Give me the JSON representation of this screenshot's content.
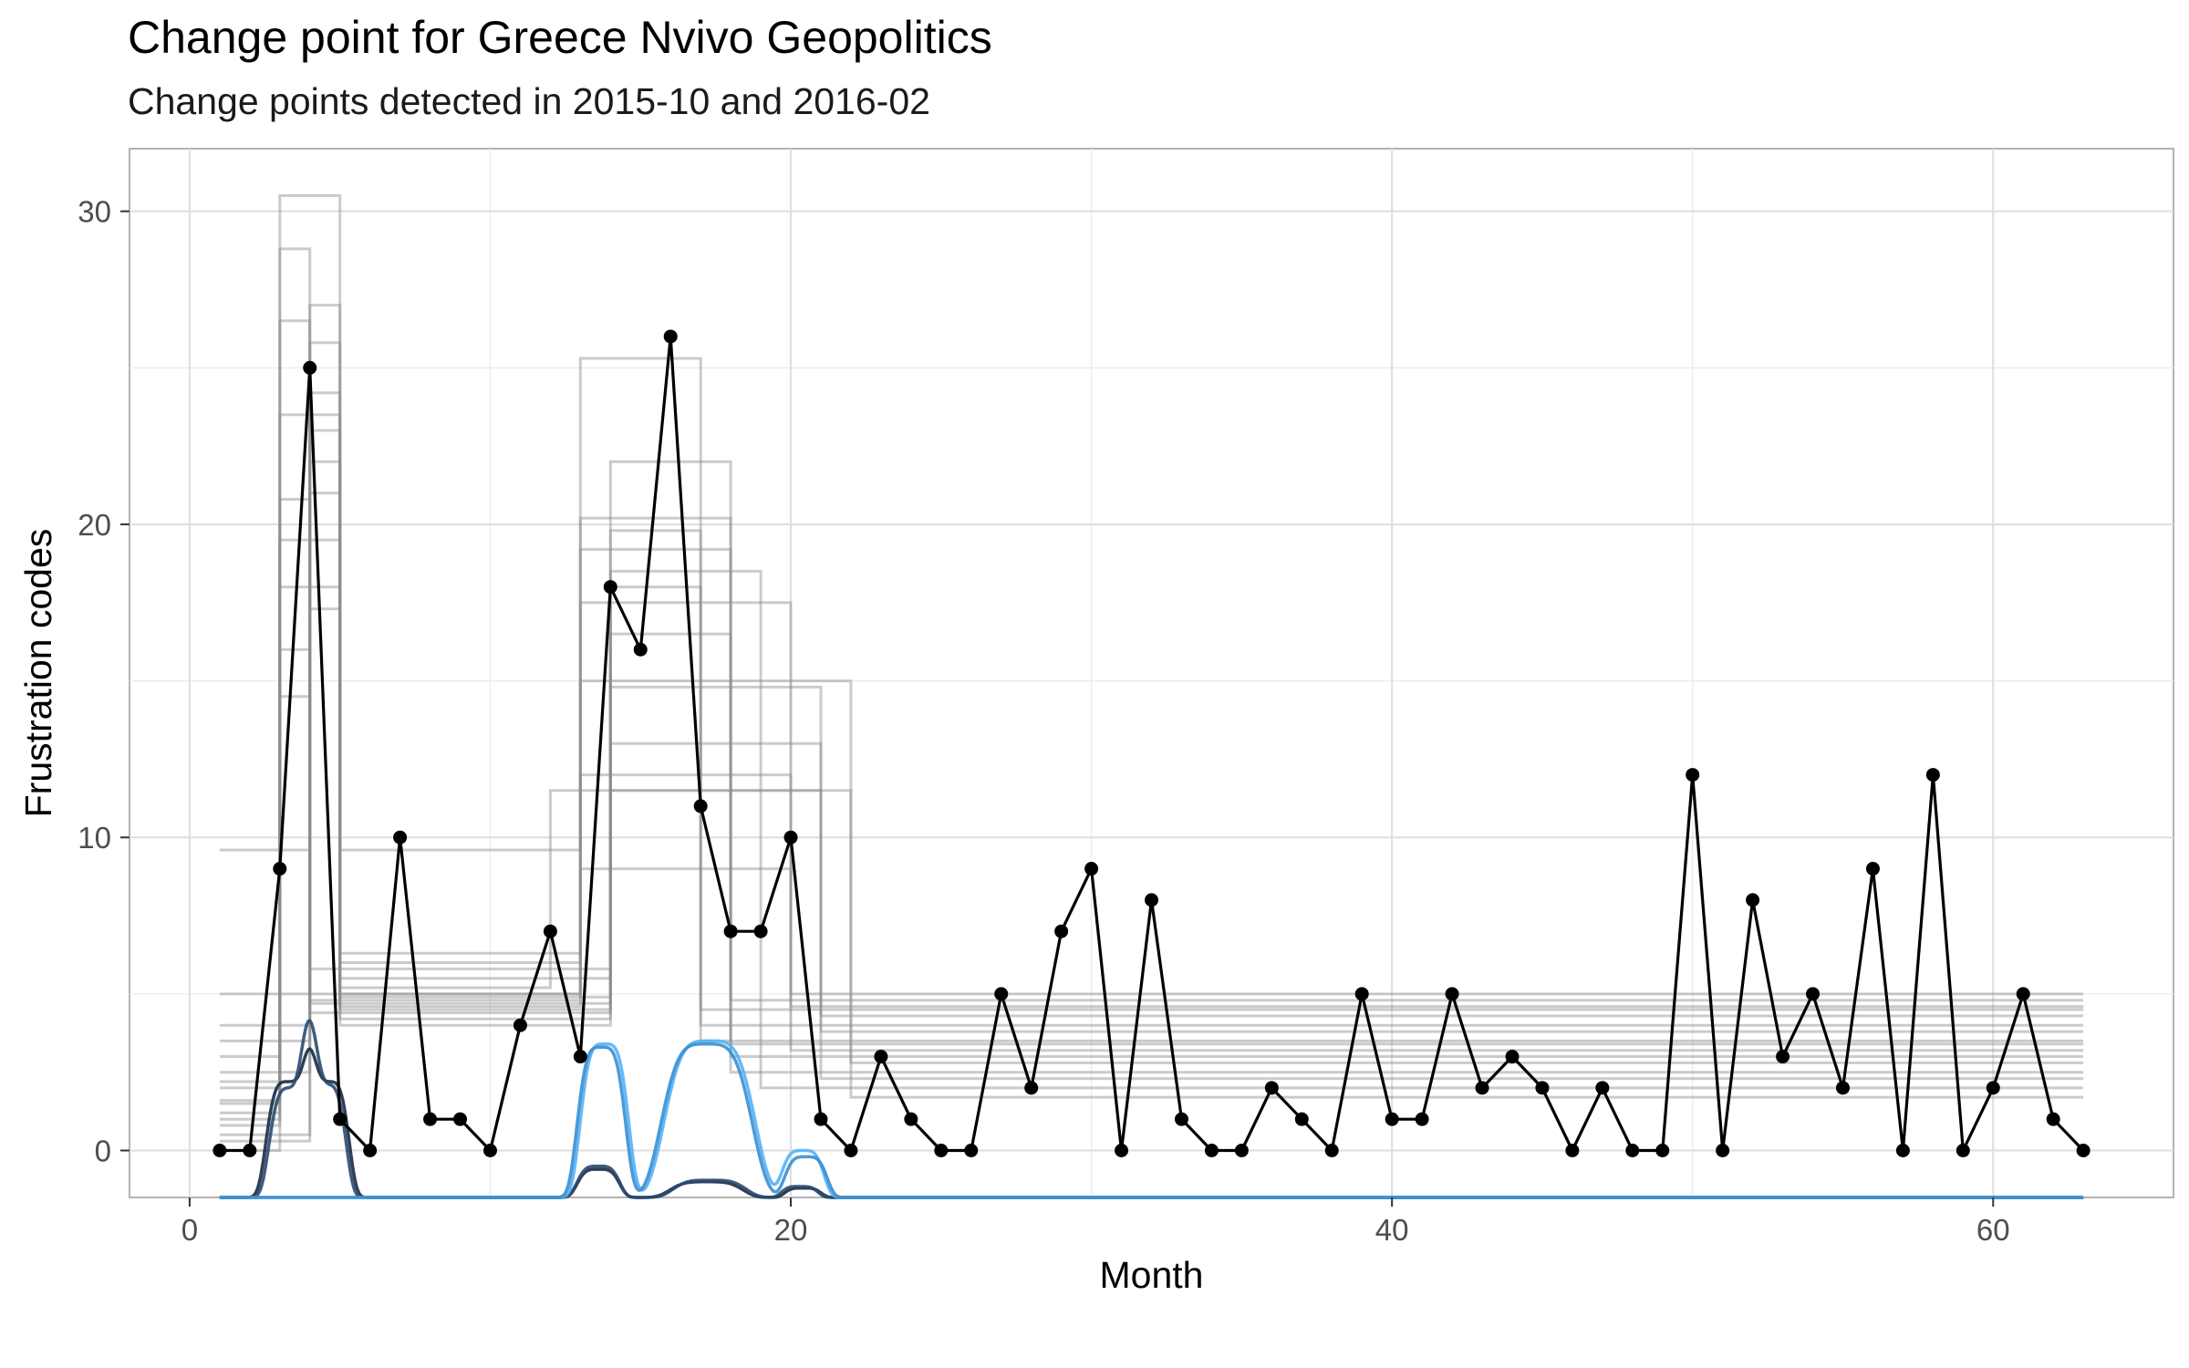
{
  "chart_data": {
    "type": "line",
    "title": "Change point for Greece Nvivo Geopolitics",
    "subtitle": "Change points detected in 2015-10 and 2016-02",
    "xlabel": "Month",
    "ylabel": "Frustration codes",
    "xlim": [
      -2,
      66
    ],
    "ylim": [
      -1.5,
      32
    ],
    "x_ticks": [
      0,
      20,
      40,
      60
    ],
    "y_ticks": [
      0,
      10,
      20,
      30
    ],
    "x_tick_labels": [
      "0",
      "20",
      "40",
      "60"
    ],
    "y_tick_labels": [
      "0",
      "10",
      "20",
      "30"
    ],
    "grid": true,
    "series": [
      {
        "role": "observed",
        "color": "#000000",
        "x": [
          1,
          2,
          3,
          4,
          5,
          6,
          7,
          8,
          9,
          10,
          11,
          12,
          13,
          14,
          15,
          16,
          17,
          18,
          19,
          20,
          21,
          22,
          23,
          24,
          25,
          26,
          27,
          28,
          29,
          30,
          31,
          32,
          33,
          34,
          35,
          36,
          37,
          38,
          39,
          40,
          41,
          42,
          43,
          44,
          45,
          46,
          47,
          48,
          49,
          50,
          51,
          52,
          53,
          54,
          55,
          56,
          57,
          58,
          59,
          60,
          61,
          62,
          63
        ],
        "y": [
          0,
          0,
          9,
          25,
          1,
          0,
          10,
          1,
          1,
          0,
          4,
          7,
          3,
          18,
          16,
          26,
          11,
          7,
          7,
          10,
          1,
          0,
          3,
          1,
          0,
          0,
          5,
          2,
          7,
          9,
          0,
          8,
          1,
          0,
          0,
          2,
          1,
          0,
          5,
          1,
          1,
          5,
          2,
          3,
          2,
          0,
          2,
          0,
          0,
          12,
          0,
          8,
          3,
          5,
          2,
          9,
          0,
          12,
          0,
          2,
          5,
          1,
          0
        ]
      }
    ],
    "posterior_mean_paths": [
      {
        "cp1": 3,
        "cp2": 5,
        "lo": 1.0,
        "hi": 30.5,
        "mid": 4.5,
        "mid_end": 14,
        "hi2": 18.0,
        "hi2_end": 17,
        "tail": 4.5
      },
      {
        "cp1": 3,
        "cp2": 4,
        "lo": 2.0,
        "hi": 28.8,
        "mid": 4.8,
        "mid_end": 13,
        "hi2": 20.2,
        "hi2_end": 18,
        "tail": 3.0
      },
      {
        "cp1": 4,
        "cp2": 5,
        "lo": 0.5,
        "hi": 24.2,
        "mid": 4.2,
        "mid_end": 14,
        "hi2": 19.8,
        "hi2_end": 17,
        "tail": 4.0
      },
      {
        "cp1": 3,
        "cp2": 4,
        "lo": 1.5,
        "hi": 20.8,
        "mid": 5.0,
        "mid_end": 13,
        "hi2": 25.3,
        "hi2_end": 17,
        "tail": 3.5
      },
      {
        "cp1": 3,
        "cp2": 5,
        "lo": 0.0,
        "hi": 18.0,
        "mid": 4.0,
        "mid_end": 14,
        "hi2": 22.0,
        "hi2_end": 18,
        "tail": 2.5
      },
      {
        "cp1": 4,
        "cp2": 5,
        "lo": 2.5,
        "hi": 17.3,
        "mid": 6.3,
        "mid_end": 13,
        "hi2": 19.2,
        "hi2_end": 18,
        "tail": 4.8
      },
      {
        "cp1": 3,
        "cp2": 4,
        "lo": 0.8,
        "hi": 14.5,
        "mid": 5.8,
        "mid_end": 14,
        "hi2": 18.5,
        "hi2_end": 19,
        "tail": 2.0
      },
      {
        "cp1": 4,
        "cp2": 5,
        "lo": 9.6,
        "hi": 23.0,
        "mid": 9.6,
        "mid_end": 13,
        "hi2": 17.5,
        "hi2_end": 20,
        "tail": 3.2
      },
      {
        "cp1": 3,
        "cp2": 5,
        "lo": 1.2,
        "hi": 19.5,
        "mid": 5.5,
        "mid_end": 14,
        "hi2": 14.8,
        "hi2_end": 21,
        "tail": 2.3
      },
      {
        "cp1": 4,
        "cp2": 5,
        "lo": 3.5,
        "hi": 22.0,
        "mid": 4.6,
        "mid_end": 13,
        "hi2": 15.0,
        "hi2_end": 22,
        "tail": 2.8
      },
      {
        "cp1": 3,
        "cp2": 4,
        "lo": 2.2,
        "hi": 26.5,
        "mid": 4.4,
        "mid_end": 14,
        "hi2": 13.0,
        "hi2_end": 21,
        "tail": 3.8
      },
      {
        "cp1": 4,
        "cp2": 5,
        "lo": 4.0,
        "hi": 21.0,
        "mid": 5.2,
        "mid_end": 12,
        "hi2": 11.5,
        "hi2_end": 21,
        "tail": 4.3
      },
      {
        "cp1": 3,
        "cp2": 5,
        "lo": 1.6,
        "hi": 23.5,
        "mid": 4.9,
        "mid_end": 14,
        "hi2": 11.5,
        "hi2_end": 22,
        "tail": 1.7
      },
      {
        "cp1": 4,
        "cp2": 5,
        "lo": 0.3,
        "hi": 25.8,
        "mid": 6.0,
        "mid_end": 13,
        "hi2": 9.0,
        "hi2_end": 20,
        "tail": 5.0
      },
      {
        "cp1": 3,
        "cp2": 4,
        "lo": 3.0,
        "hi": 16.0,
        "mid": 4.7,
        "mid_end": 14,
        "hi2": 16.5,
        "hi2_end": 18,
        "tail": 3.4
      },
      {
        "cp1": 4,
        "cp2": 5,
        "lo": 5.0,
        "hi": 27.0,
        "mid": 5.0,
        "mid_end": 13,
        "hi2": 12.0,
        "hi2_end": 20,
        "tail": 4.6
      }
    ],
    "changepoint_densities": [
      {
        "color": "#1a2a44",
        "peaks": [
          [
            3.3,
            0.75,
            3.7
          ],
          [
            4.6,
            0.7,
            3.7
          ],
          [
            13.6,
            0.7,
            0.9
          ],
          [
            17.2,
            1.2,
            0.5
          ],
          [
            20.4,
            0.6,
            0.3
          ]
        ]
      },
      {
        "color": "#2a4a70",
        "peaks": [
          [
            3.4,
            0.75,
            3.5
          ],
          [
            4.5,
            0.7,
            3.6
          ],
          [
            13.6,
            0.7,
            1.0
          ],
          [
            17.3,
            1.2,
            0.55
          ],
          [
            20.3,
            0.6,
            0.35
          ]
        ]
      },
      {
        "color": "#56b1f7",
        "peaks": [
          [
            13.8,
            0.8,
            4.9
          ],
          [
            17.3,
            1.5,
            5.0
          ],
          [
            20.4,
            0.7,
            1.5
          ]
        ]
      },
      {
        "color": "#3a8fd0",
        "peaks": [
          [
            13.7,
            0.8,
            4.8
          ],
          [
            17.2,
            1.5,
            4.9
          ],
          [
            20.5,
            0.7,
            1.3
          ]
        ]
      }
    ],
    "density_baseline": -1.5
  }
}
